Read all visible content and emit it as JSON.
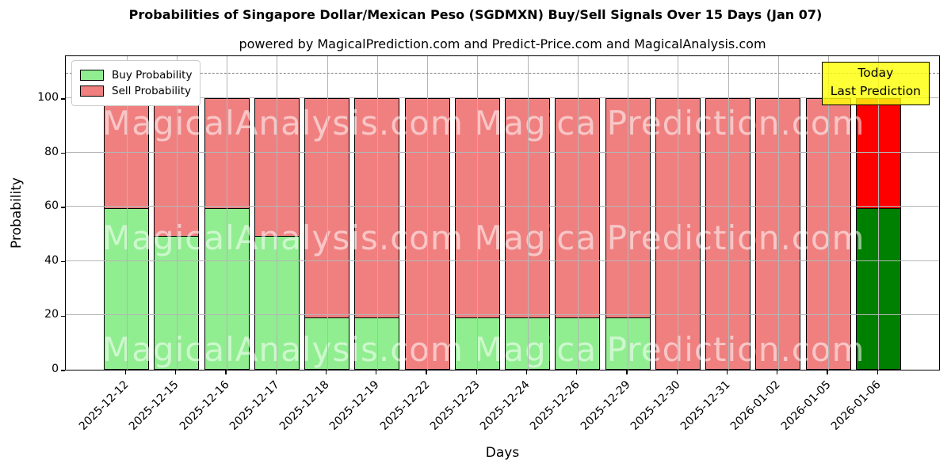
{
  "chart_data": {
    "type": "bar",
    "stacked": true,
    "title": "Probabilities of Singapore Dollar/Mexican Peso (SGDMXN) Buy/Sell Signals Over 15 Days (Jan 07)",
    "subtitle": "powered by MagicalPrediction.com and Predict-Price.com and MagicalAnalysis.com",
    "xlabel": "Days",
    "ylabel": "Probability",
    "categories": [
      "2025-12-12",
      "2025-12-15",
      "2025-12-16",
      "2025-12-17",
      "2025-12-18",
      "2025-12-19",
      "2025-12-22",
      "2025-12-23",
      "2025-12-24",
      "2025-12-26",
      "2025-12-29",
      "2025-12-30",
      "2025-12-31",
      "2026-01-02",
      "2026-01-05",
      "2026-01-06"
    ],
    "series": [
      {
        "name": "Buy Probability",
        "color": "#90EE90",
        "values": [
          59.5,
          49.5,
          59.5,
          49.5,
          19.5,
          19.5,
          0,
          19.5,
          19.5,
          19.5,
          19.5,
          0,
          0,
          0,
          0,
          59.5
        ]
      },
      {
        "name": "Sell Probability",
        "color": "#F08080",
        "values": [
          40.5,
          50.5,
          40.5,
          50.5,
          80.5,
          80.5,
          100,
          80.5,
          80.5,
          80.5,
          80.5,
          100,
          100,
          100,
          100,
          40.5
        ]
      }
    ],
    "last_bar_colors": {
      "buy": "#008000",
      "sell": "#FF0000"
    },
    "bar_edge_color": "#000000",
    "yticks": [
      0,
      20,
      40,
      60,
      80,
      100
    ],
    "ylim": [
      0,
      116
    ],
    "dashed_line_y": 110,
    "grid": true,
    "legend_position": "upper-left",
    "annotation": {
      "lines": [
        "Today",
        "Last Prediction"
      ],
      "bg_color": "#FFFF33"
    },
    "watermarks": {
      "left": "MagicalAnalysis.com",
      "right": "MagicalPrediction.com",
      "rows": 3
    }
  }
}
